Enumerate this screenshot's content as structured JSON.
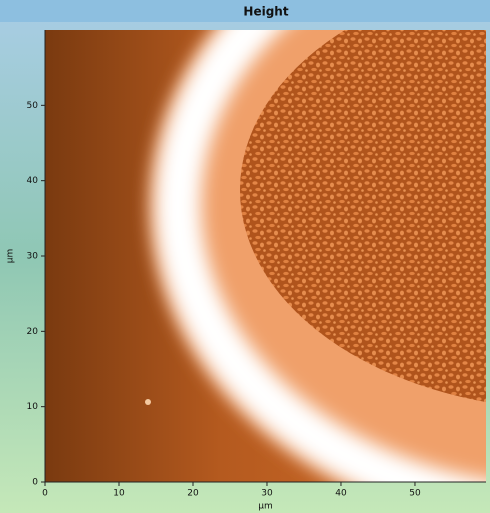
{
  "chart_data": {
    "type": "image",
    "title": "Height",
    "xlabel": "µm",
    "ylabel": "µm",
    "xlim": [
      0,
      59.6
    ],
    "ylim": [
      0,
      60
    ],
    "xticks": [
      0,
      10,
      20,
      30,
      40,
      50
    ],
    "yticks": [
      0,
      10,
      20,
      30,
      40,
      50
    ]
  }
}
